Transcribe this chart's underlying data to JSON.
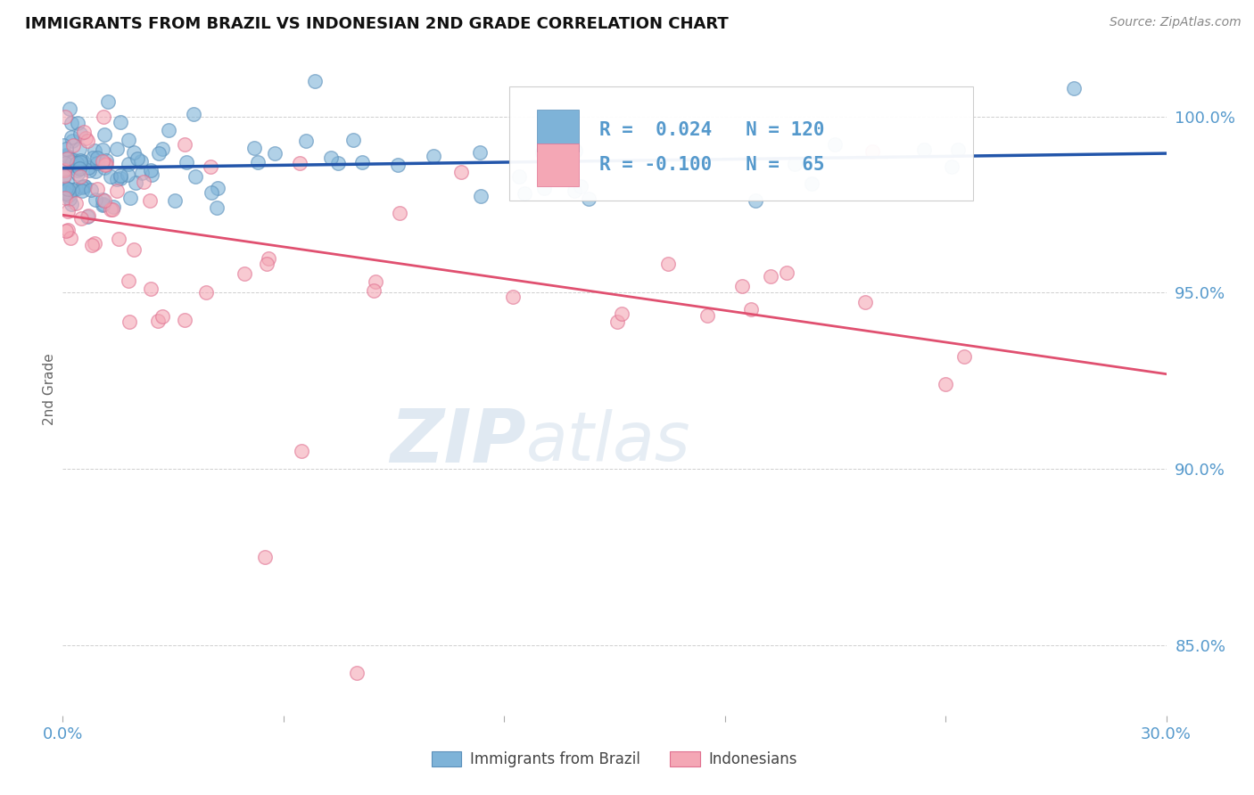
{
  "title": "IMMIGRANTS FROM BRAZIL VS INDONESIAN 2ND GRADE CORRELATION CHART",
  "source_text": "Source: ZipAtlas.com",
  "ylabel": "2nd Grade",
  "x_min": 0.0,
  "x_max": 30.0,
  "y_min": 83.0,
  "y_max": 101.5,
  "y_ticks": [
    85.0,
    90.0,
    95.0,
    100.0
  ],
  "y_tick_labels": [
    "85.0%",
    "90.0%",
    "95.0%",
    "100.0%"
  ],
  "blue_color": "#7EB3D8",
  "blue_edge_color": "#5A8FBA",
  "pink_color": "#F4A7B5",
  "pink_edge_color": "#E07090",
  "line_blue_color": "#2255AA",
  "line_pink_color": "#E05070",
  "grid_color": "#BBBBBB",
  "background_color": "#FFFFFF",
  "title_color": "#111111",
  "axis_label_color": "#5599CC",
  "R_blue": 0.024,
  "N_blue": 120,
  "R_pink": -0.1,
  "N_pink": 65,
  "legend_label_blue": "Immigrants from Brazil",
  "legend_label_pink": "Indonesians",
  "watermark_zip": "ZIP",
  "watermark_atlas": "atlas",
  "watermark_color_zip": "#C8D8E8",
  "watermark_color_atlas": "#C8D8E8",
  "dot_size": 90
}
